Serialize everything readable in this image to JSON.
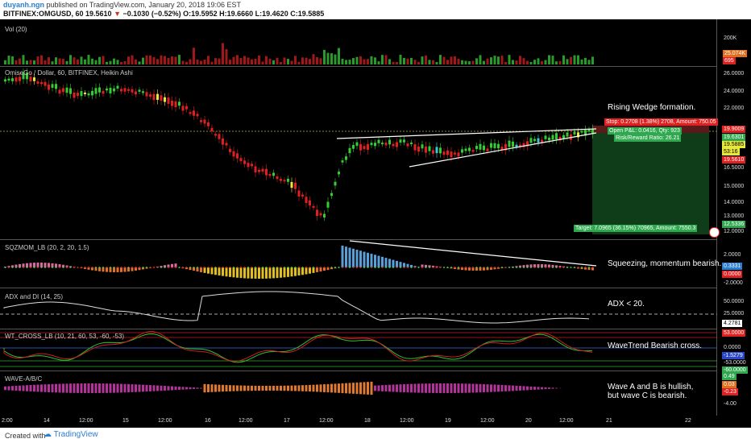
{
  "header": {
    "user": "duyanh.ngn",
    "published": "published on TradingView.com, January 20, 2018 19:06 EST",
    "symbol": "BITFINEX:OMGUSD, 60",
    "last": "19.5610",
    "arrow": "▼",
    "change": "−0.1030 (−0.52%)",
    "ohlc": "O:19.5952 H:19.6660 L:19.4620 C:19.5885"
  },
  "panes": {
    "vol": {
      "label": "Vol (20)",
      "axis": [
        "200K",
        "25.074K",
        "695"
      ]
    },
    "main": {
      "label": "OmiseGo / Dollar, 60, BITFINEX, Heikin Ashi",
      "axis": [
        "26.0000",
        "24.0000",
        "22.0000",
        "19.9009",
        "19.6301",
        "19.5885",
        "53:16",
        "19.5610",
        "16.5000",
        "15.0000",
        "14.0000",
        "13.0000",
        "12.5336",
        "12.0000"
      ],
      "stop": "Stop: 0.2708 (1.38%) 2708, Amount: 750.05",
      "pnl": "Open P&L: 0.0416, Qty: 923",
      "rr": "Risk/Reward Ratio: 26.21",
      "target": "Target: 7.0965 (36.15%) 70965, Amount: 7550.3",
      "note": "Rising Wedge formation."
    },
    "sqz": {
      "label": "SQZMOM_LB (20, 2, 20, 1.5)",
      "axis": [
        "2.0000",
        "0.3331",
        "0.0000",
        "-2.0000"
      ],
      "note": "Squeezing, momentum bearish."
    },
    "adx": {
      "label": "ADX and DI (14, 25)",
      "axis": [
        "50.0000",
        "25.0000",
        "4.2781"
      ],
      "note": "ADX < 20."
    },
    "wt": {
      "label": "WT_CROSS_LB (10, 21, 60, 53, -60, -53)",
      "axis": [
        "53.0000",
        "0.0000",
        "-1.5279",
        "-53.0000",
        "-60.0000"
      ],
      "note": "WaveTrend Bearish cross."
    },
    "wave": {
      "label": "WAVE-A/B/C",
      "axis": [
        "0.49",
        "0.03",
        "-0.23",
        "-4.00"
      ],
      "note1": "Wave A and B is hullish,",
      "note2": "but wave C is bearish."
    }
  },
  "xaxis": [
    "2:00",
    "14",
    "12:00",
    "15",
    "12:00",
    "16",
    "12:00",
    "17",
    "12:00",
    "18",
    "12:00",
    "19",
    "12:00",
    "20",
    "12:00",
    "21",
    "22"
  ],
  "footer": {
    "created": "Created with",
    "brand": "TradingView"
  },
  "colors": {
    "up": "#33cc33",
    "down": "#e02020",
    "accent": "#2a7dd1"
  }
}
